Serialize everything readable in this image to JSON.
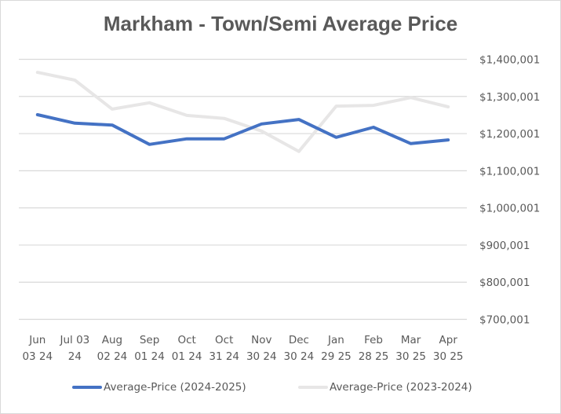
{
  "chart_data": {
    "type": "line",
    "title": "Markham - Town/Semi Average Price",
    "xlabel": "",
    "ylabel": "",
    "ylim": [
      700001,
      1400001
    ],
    "yticks": [
      "$1,400,001",
      "$1,300,001",
      "$1,200,001",
      "$1,100,001",
      "$1,000,001",
      "$900,001",
      "$800,001",
      "$700,001"
    ],
    "ytick_values": [
      1400001,
      1300001,
      1200001,
      1100001,
      1000001,
      900001,
      800001,
      700001
    ],
    "y_axis_position": "right",
    "grid": true,
    "legend_position": "bottom",
    "categories": [
      [
        "Jun",
        "03 24"
      ],
      [
        "Jul 03",
        "24"
      ],
      [
        "Aug",
        "02 24"
      ],
      [
        "Sep",
        "01 24"
      ],
      [
        "Oct",
        "01 24"
      ],
      [
        "Oct",
        "31 24"
      ],
      [
        "Nov",
        "30 24"
      ],
      [
        "Dec",
        "30 24"
      ],
      [
        "Jan",
        "29 25"
      ],
      [
        "Feb",
        "28 25"
      ],
      [
        "Mar",
        "30 25"
      ],
      [
        "Apr",
        "30 25"
      ]
    ],
    "series": [
      {
        "name": "Average-Price (2024-2025)",
        "color": "#4472c4",
        "values": [
          1251000,
          1228000,
          1223000,
          1171000,
          1186000,
          1186000,
          1226000,
          1238000,
          1190000,
          1217000,
          1173000,
          1183000
        ]
      },
      {
        "name": "Average-Price (2023-2024)",
        "color": "#e7e6e6",
        "values": [
          1365000,
          1344000,
          1266000,
          1283000,
          1249000,
          1241000,
          1207000,
          1152000,
          1274000,
          1276000,
          1297000,
          1272000
        ]
      }
    ]
  }
}
